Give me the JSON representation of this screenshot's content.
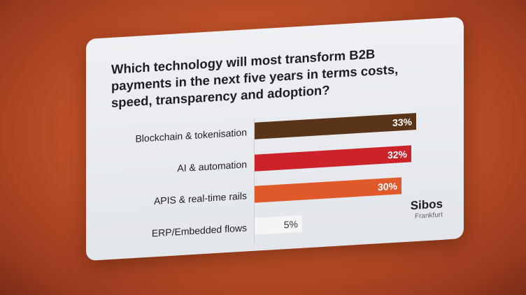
{
  "chart_data": {
    "type": "bar",
    "orientation": "horizontal",
    "title": "Which technology will most transform B2B payments in the next five years in terms costs, speed, transparency and adoption?",
    "categories": [
      "Blockchain & tokenisation",
      "AI & automation",
      "APIS & real-time rails",
      "ERP/Embedded flows"
    ],
    "values": [
      33,
      32,
      30,
      5
    ],
    "value_labels": [
      "33%",
      "32%",
      "30%",
      "5%"
    ],
    "colors": [
      "#5a3419",
      "#cc2229",
      "#e0592a",
      "#f5f5f5"
    ],
    "label_colors": [
      "#ffffff",
      "#ffffff",
      "#ffffff",
      "#333333"
    ],
    "xlabel": "",
    "ylabel": "",
    "xlim": [
      0,
      35
    ]
  },
  "brand": {
    "name": "Sibos",
    "city": "Frankfurt"
  }
}
